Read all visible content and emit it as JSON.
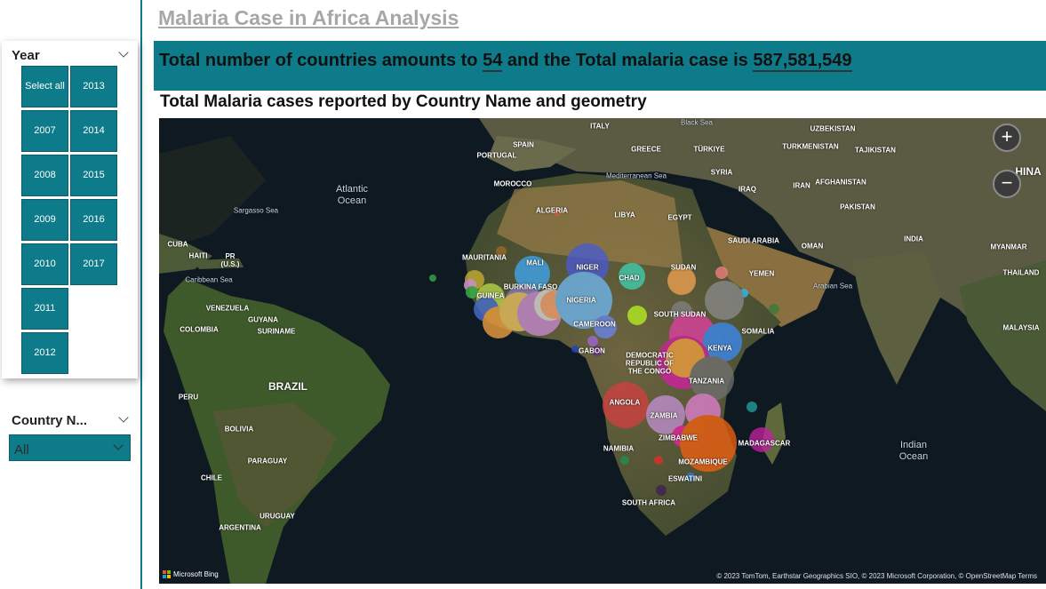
{
  "header": {
    "title": "Malaria Case in Africa Analysis",
    "kpi_prefix": "Total number of countries amounts to",
    "countries_count": "54",
    "kpi_middle": "and the Total malaria case is",
    "total_cases": "587,581,549"
  },
  "year_filter": {
    "title": "Year",
    "tiles": [
      "Select all",
      "2007",
      "2008",
      "2009",
      "2010",
      "2011",
      "2012",
      "2013",
      "2014",
      "2015",
      "2016",
      "2017"
    ]
  },
  "country_filter": {
    "title": "Country N...",
    "value": "All"
  },
  "map": {
    "title": "Total Malaria cases reported by Country Name and geometry",
    "zoom_in": "+",
    "zoom_out": "−",
    "attribution": "© 2023 TomTom, Earthstar Geographics SIO, © 2023 Microsoft Corporation, © OpenStreetMap Terms",
    "provider": "Microsoft Bing",
    "labels": {
      "italy": "ITALY",
      "black_sea": "Black Sea",
      "uzbekistan": "UZBEKISTAN",
      "spain": "SPAIN",
      "portugal": "PORTUGAL",
      "greece": "GREECE",
      "turkiye": "TÜRKIYE",
      "turkmenistan": "TURKMENISTAN",
      "tajikistan": "TAJIKISTAN",
      "china": "HINA",
      "mediterranean": "Mediterranean Sea",
      "syria": "SYRIA",
      "morocco": "MOROCCO",
      "iraq": "IRAQ",
      "iran": "IRAN",
      "afghanistan": "AFGHANISTAN",
      "atlantic": "Atlantic Ocean",
      "pakistan": "PAKISTAN",
      "sargasso": "Sargasso Sea",
      "algeria": "ALGERIA",
      "libya": "LIBYA",
      "egypt": "EGYPT",
      "india": "INDIA",
      "cuba": "CUBA",
      "saudi": "SAUDI ARABIA",
      "oman": "OMAN",
      "myanmar": "MYANMAR",
      "haiti": "HAITI",
      "pr": "PR (U.S.)",
      "mauritania": "MAURITANIA",
      "niger": "NIGER",
      "sudan": "SUDAN",
      "yemen": "YEMEN",
      "thailand": "THAILAND",
      "caribbean": "Caribbean Sea",
      "mali": "MALI",
      "chad": "CHAD",
      "arabian_sea": "Arabian Sea",
      "burkina": "BURKINA FASO",
      "venezuela": "VENEZUELA",
      "guinea": "GUINEA",
      "nigeria": "NIGERIA",
      "south_sudan": "SOUTH SUDAN",
      "guyana": "GUYANA",
      "colombia": "COLOMBIA",
      "suriname": "SURINAME",
      "cameroon": "CAMEROON",
      "somalia": "SOMALIA",
      "malaysia": "MALAYSIA",
      "kenya": "KENYA",
      "gabon": "GABON",
      "drc": "DEMOCRATIC REPUBLIC OF THE CONGO",
      "brazil": "BRAZIL",
      "tanzania": "TANZANIA",
      "peru": "PERU",
      "angola": "ANGOLA",
      "zambia": "ZAMBIA",
      "bolivia": "BOLIVIA",
      "zimbabwe": "ZIMBABWE",
      "madagascar": "MADAGASCAR",
      "indian_ocean": "Indian Ocean",
      "namibia": "NAMIBIA",
      "paraguay": "PARAGUAY",
      "mozambique": "MOZAMBIQUE",
      "chile": "CHILE",
      "eswatini": "ESWATINI",
      "south_africa": "SOUTH AFRICA",
      "uruguay": "URUGUAY",
      "argentina": "ARGENTINA"
    },
    "colors": {
      "banner": "#0e7b8a",
      "ocean": "#101820",
      "land": "#5a5a3e"
    }
  }
}
